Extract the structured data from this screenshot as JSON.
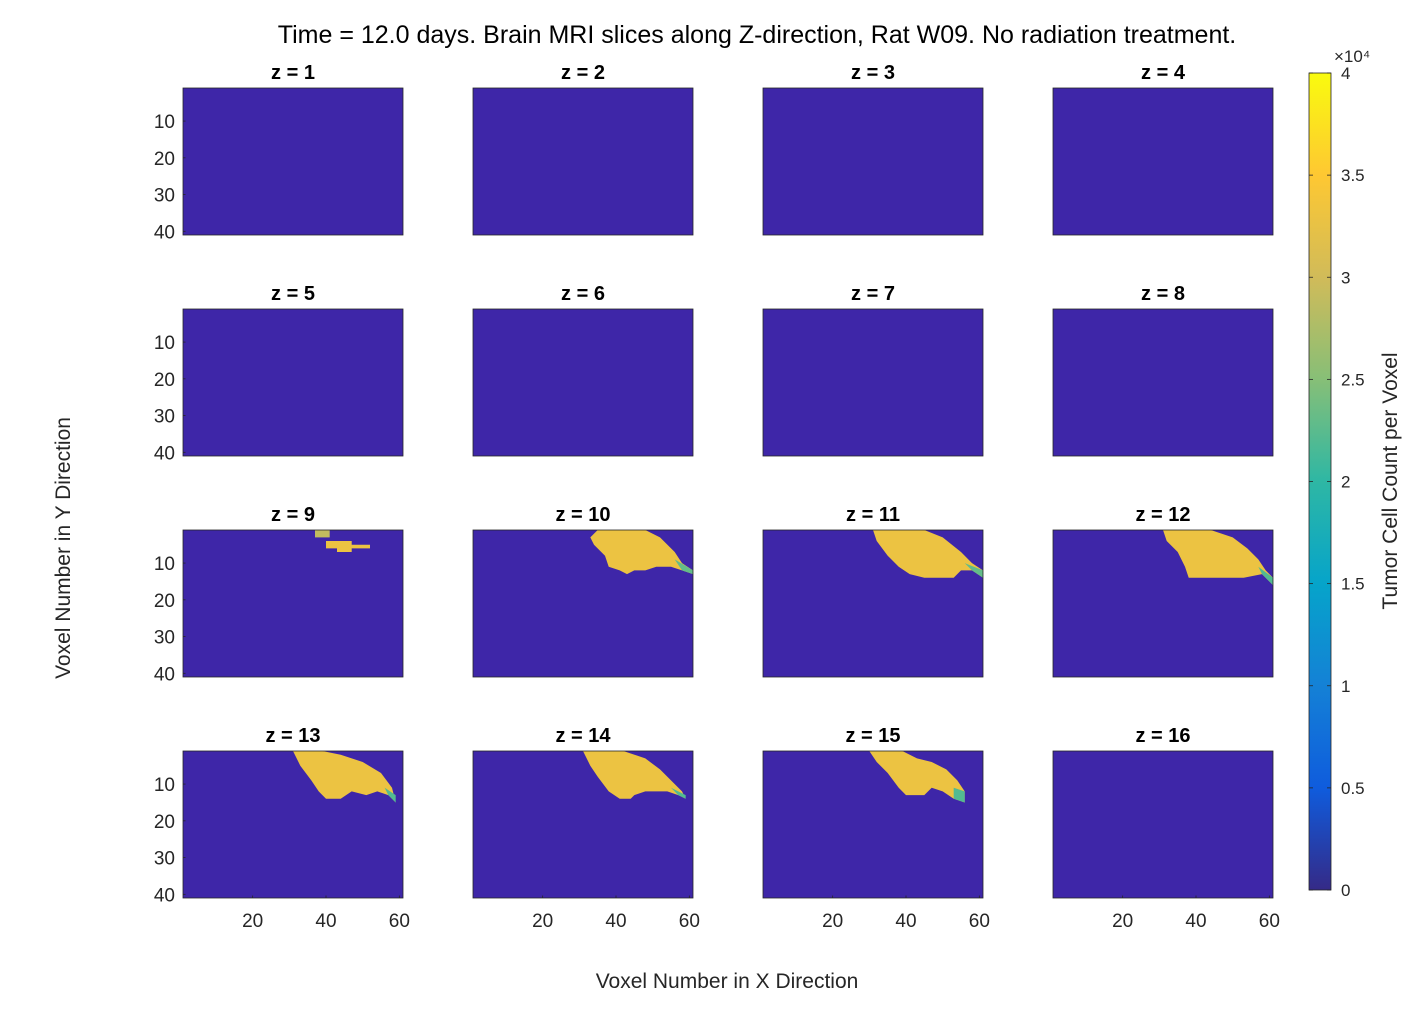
{
  "chart_data": {
    "type": "heatmap",
    "title": "Time = 12.0 days. Brain MRI slices along Z-direction, Rat W09. No radiation treatment.",
    "xlabel": "Voxel Number in X Direction",
    "ylabel": "Voxel Number in Y Direction",
    "x_range": [
      1,
      61
    ],
    "y_range": [
      1,
      41
    ],
    "x_ticks": [
      20,
      40,
      60
    ],
    "y_ticks": [
      10,
      20,
      30,
      40
    ],
    "colorbar": {
      "label": "Tumor Cell Count per Voxel",
      "range": [
        0,
        40000
      ],
      "exponent_label": "×10⁴",
      "ticks": [
        0,
        0.5,
        1,
        1.5,
        2,
        2.5,
        3,
        3.5,
        4
      ],
      "tick_labels": [
        "0",
        "0.5",
        "1",
        "1.5",
        "2",
        "2.5",
        "3",
        "3.5",
        "4"
      ],
      "colormap": "parula",
      "colors": [
        "#352a87",
        "#0f5cdd",
        "#1481d6",
        "#06a4ca",
        "#2eb7a4",
        "#87bf77",
        "#d1bb59",
        "#fec832",
        "#f9fb0e"
      ]
    },
    "background_color": "#3e26a8",
    "slices": [
      {
        "title": "z = 1",
        "z": 1,
        "regions": []
      },
      {
        "title": "z = 2",
        "z": 2,
        "regions": []
      },
      {
        "title": "z = 3",
        "z": 3,
        "regions": []
      },
      {
        "title": "z = 4",
        "z": 4,
        "regions": []
      },
      {
        "title": "z = 5",
        "z": 5,
        "regions": []
      },
      {
        "title": "z = 6",
        "z": 6,
        "regions": []
      },
      {
        "title": "z = 7",
        "z": 7,
        "regions": []
      },
      {
        "title": "z = 8",
        "z": 8,
        "regions": []
      },
      {
        "title": "z = 9",
        "z": 9,
        "regions": [
          {
            "value": 29000,
            "polygon": [
              [
                37,
                1
              ],
              [
                41,
                1
              ],
              [
                41,
                3
              ],
              [
                37,
                3
              ]
            ]
          },
          {
            "value": 33000,
            "polygon": [
              [
                40,
                4
              ],
              [
                47,
                4
              ],
              [
                47,
                5
              ],
              [
                52,
                5
              ],
              [
                52,
                6
              ],
              [
                47,
                6
              ],
              [
                47,
                7
              ],
              [
                43,
                7
              ],
              [
                43,
                6
              ],
              [
                40,
                6
              ]
            ]
          }
        ]
      },
      {
        "title": "z = 10",
        "z": 10,
        "regions": [
          {
            "value": 33000,
            "polygon": [
              [
                35,
                1
              ],
              [
                48,
                1
              ],
              [
                52,
                3
              ],
              [
                56,
                7
              ],
              [
                58,
                10
              ],
              [
                61,
                12
              ],
              [
                61,
                13
              ],
              [
                58,
                12
              ],
              [
                55,
                11
              ],
              [
                51,
                11
              ],
              [
                48,
                12
              ],
              [
                45,
                12
              ],
              [
                43,
                13
              ],
              [
                41,
                12
              ],
              [
                38,
                11
              ],
              [
                37,
                8
              ],
              [
                34,
                5
              ],
              [
                33,
                3
              ]
            ]
          },
          {
            "value": 23000,
            "polygon": [
              [
                56,
                9
              ],
              [
                61,
                12
              ],
              [
                61,
                13
              ],
              [
                58,
                12
              ]
            ]
          }
        ]
      },
      {
        "title": "z = 11",
        "z": 11,
        "regions": [
          {
            "value": 33000,
            "polygon": [
              [
                31,
                1
              ],
              [
                45,
                1
              ],
              [
                50,
                3
              ],
              [
                55,
                7
              ],
              [
                58,
                10
              ],
              [
                61,
                12
              ],
              [
                61,
                14
              ],
              [
                58,
                12
              ],
              [
                55,
                12
              ],
              [
                53,
                14
              ],
              [
                45,
                14
              ],
              [
                41,
                13
              ],
              [
                38,
                11
              ],
              [
                35,
                8
              ],
              [
                32,
                4
              ]
            ]
          },
          {
            "value": 23000,
            "polygon": [
              [
                56,
                10
              ],
              [
                61,
                12
              ],
              [
                61,
                14
              ],
              [
                58,
                12
              ]
            ]
          }
        ]
      },
      {
        "title": "z = 12",
        "z": 12,
        "regions": [
          {
            "value": 33000,
            "polygon": [
              [
                31,
                1
              ],
              [
                44,
                1
              ],
              [
                50,
                3
              ],
              [
                54,
                6
              ],
              [
                57,
                9
              ],
              [
                59,
                12
              ],
              [
                61,
                14
              ],
              [
                61,
                16
              ],
              [
                58,
                13
              ],
              [
                53,
                14
              ],
              [
                38,
                14
              ],
              [
                37,
                11
              ],
              [
                35,
                7
              ],
              [
                32,
                4
              ]
            ]
          },
          {
            "value": 22000,
            "polygon": [
              [
                57,
                11
              ],
              [
                61,
                14
              ],
              [
                61,
                16
              ],
              [
                58,
                13
              ]
            ]
          }
        ]
      },
      {
        "title": "z = 13",
        "z": 13,
        "regions": [
          {
            "value": 33000,
            "polygon": [
              [
                31,
                1
              ],
              [
                39,
                1
              ],
              [
                44,
                2
              ],
              [
                50,
                4
              ],
              [
                55,
                7
              ],
              [
                58,
                11
              ],
              [
                59,
                15
              ],
              [
                57,
                13
              ],
              [
                54,
                12
              ],
              [
                51,
                13
              ],
              [
                47,
                12
              ],
              [
                44,
                14
              ],
              [
                40,
                14
              ],
              [
                38,
                12
              ],
              [
                36,
                9
              ],
              [
                33,
                5
              ]
            ]
          },
          {
            "value": 22000,
            "polygon": [
              [
                56,
                11
              ],
              [
                59,
                13
              ],
              [
                59,
                15
              ],
              [
                57,
                13
              ]
            ]
          }
        ]
      },
      {
        "title": "z = 14",
        "z": 14,
        "regions": [
          {
            "value": 33000,
            "polygon": [
              [
                31,
                1
              ],
              [
                42,
                1
              ],
              [
                48,
                3
              ],
              [
                52,
                6
              ],
              [
                55,
                9
              ],
              [
                58,
                12
              ],
              [
                59,
                14
              ],
              [
                57,
                13
              ],
              [
                54,
                12
              ],
              [
                48,
                12
              ],
              [
                45,
                13
              ],
              [
                44,
                14
              ],
              [
                41,
                14
              ],
              [
                38,
                12
              ],
              [
                35,
                8
              ],
              [
                33,
                5
              ]
            ]
          },
          {
            "value": 22000,
            "polygon": [
              [
                55,
                11
              ],
              [
                59,
                13
              ],
              [
                59,
                14
              ],
              [
                57,
                13
              ]
            ]
          }
        ]
      },
      {
        "title": "z = 15",
        "z": 15,
        "regions": [
          {
            "value": 33000,
            "polygon": [
              [
                30,
                1
              ],
              [
                39,
                1
              ],
              [
                43,
                3
              ],
              [
                47,
                4
              ],
              [
                51,
                6
              ],
              [
                54,
                9
              ],
              [
                56,
                12
              ],
              [
                56,
                15
              ],
              [
                53,
                14
              ],
              [
                50,
                12
              ],
              [
                47,
                11
              ],
              [
                45,
                13
              ],
              [
                40,
                13
              ],
              [
                38,
                11
              ],
              [
                35,
                7
              ],
              [
                32,
                4
              ]
            ]
          },
          {
            "value": 22000,
            "polygon": [
              [
                53,
                11
              ],
              [
                56,
                12
              ],
              [
                56,
                15
              ],
              [
                53,
                14
              ]
            ]
          }
        ]
      },
      {
        "title": "z = 16",
        "z": 16,
        "regions": []
      }
    ]
  }
}
